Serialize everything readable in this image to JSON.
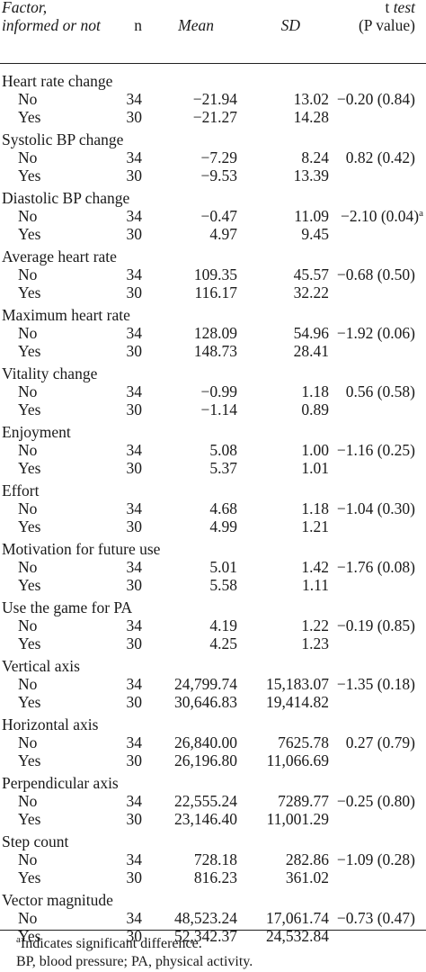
{
  "header": {
    "factor_line1": "Factor,",
    "factor_line2": "informed or not",
    "n": "n",
    "mean": "Mean",
    "sd": "SD",
    "t_prefix": "t",
    "t_suffix": "test",
    "p": "(P value)"
  },
  "rows": [
    {
      "factor": "Heart rate change",
      "no": {
        "label": "No",
        "n": "34",
        "mean": "−21.94",
        "sd": "13.02"
      },
      "yes": {
        "label": "Yes",
        "n": "30",
        "mean": "−21.27",
        "sd": "14.28"
      },
      "t": "−0.20 (0.84)",
      "sup": ""
    },
    {
      "factor": "Systolic BP change",
      "no": {
        "label": "No",
        "n": "34",
        "mean": "−7.29",
        "sd": "8.24"
      },
      "yes": {
        "label": "Yes",
        "n": "30",
        "mean": "−9.53",
        "sd": "13.39"
      },
      "t": "0.82 (0.42)",
      "sup": ""
    },
    {
      "factor": "Diastolic BP change",
      "no": {
        "label": "No",
        "n": "34",
        "mean": "−0.47",
        "sd": "11.09"
      },
      "yes": {
        "label": "Yes",
        "n": "30",
        "mean": "4.97",
        "sd": "9.45"
      },
      "t": "−2.10 (0.04)",
      "sup": "a"
    },
    {
      "factor": "Average heart rate",
      "no": {
        "label": "No",
        "n": "34",
        "mean": "109.35",
        "sd": "45.57"
      },
      "yes": {
        "label": "Yes",
        "n": "30",
        "mean": "116.17",
        "sd": "32.22"
      },
      "t": "−0.68 (0.50)",
      "sup": ""
    },
    {
      "factor": "Maximum heart rate",
      "no": {
        "label": "No",
        "n": "34",
        "mean": "128.09",
        "sd": "54.96"
      },
      "yes": {
        "label": "Yes",
        "n": "30",
        "mean": "148.73",
        "sd": "28.41"
      },
      "t": "−1.92 (0.06)",
      "sup": ""
    },
    {
      "factor": "Vitality change",
      "no": {
        "label": "No",
        "n": "34",
        "mean": "−0.99",
        "sd": "1.18"
      },
      "yes": {
        "label": "Yes",
        "n": "30",
        "mean": "−1.14",
        "sd": "0.89"
      },
      "t": "0.56 (0.58)",
      "sup": ""
    },
    {
      "factor": "Enjoyment",
      "no": {
        "label": "No",
        "n": "34",
        "mean": "5.08",
        "sd": "1.00"
      },
      "yes": {
        "label": "Yes",
        "n": "30",
        "mean": "5.37",
        "sd": "1.01"
      },
      "t": "−1.16 (0.25)",
      "sup": ""
    },
    {
      "factor": "Effort",
      "no": {
        "label": "No",
        "n": "34",
        "mean": "4.68",
        "sd": "1.18"
      },
      "yes": {
        "label": "Yes",
        "n": "30",
        "mean": "4.99",
        "sd": "1.21"
      },
      "t": "−1.04 (0.30)",
      "sup": ""
    },
    {
      "factor": "Motivation for future use",
      "no": {
        "label": "No",
        "n": "34",
        "mean": "5.01",
        "sd": "1.42"
      },
      "yes": {
        "label": "Yes",
        "n": "30",
        "mean": "5.58",
        "sd": "1.11"
      },
      "t": "−1.76 (0.08)",
      "sup": ""
    },
    {
      "factor": "Use the game for PA",
      "no": {
        "label": "No",
        "n": "34",
        "mean": "4.19",
        "sd": "1.22"
      },
      "yes": {
        "label": "Yes",
        "n": "30",
        "mean": "4.25",
        "sd": "1.23"
      },
      "t": "−0.19 (0.85)",
      "sup": ""
    },
    {
      "factor": "Vertical axis",
      "no": {
        "label": "No",
        "n": "34",
        "mean": "24,799.74",
        "sd": "15,183.07"
      },
      "yes": {
        "label": "Yes",
        "n": "30",
        "mean": "30,646.83",
        "sd": "19,414.82"
      },
      "t": "−1.35 (0.18)",
      "sup": ""
    },
    {
      "factor": "Horizontal axis",
      "no": {
        "label": "No",
        "n": "34",
        "mean": "26,840.00",
        "sd": "7625.78"
      },
      "yes": {
        "label": "Yes",
        "n": "30",
        "mean": "26,196.80",
        "sd": "11,066.69"
      },
      "t": "0.27 (0.79)",
      "sup": ""
    },
    {
      "factor": "Perpendicular axis",
      "no": {
        "label": "No",
        "n": "34",
        "mean": "22,555.24",
        "sd": "7289.77"
      },
      "yes": {
        "label": "Yes",
        "n": "30",
        "mean": "23,146.40",
        "sd": "11,001.29"
      },
      "t": "−0.25 (0.80)",
      "sup": ""
    },
    {
      "factor": "Step count",
      "no": {
        "label": "No",
        "n": "34",
        "mean": "728.18",
        "sd": "282.86"
      },
      "yes": {
        "label": "Yes",
        "n": "30",
        "mean": "816.23",
        "sd": "361.02"
      },
      "t": "−1.09 (0.28)",
      "sup": ""
    },
    {
      "factor": "Vector magnitude",
      "no": {
        "label": "No",
        "n": "34",
        "mean": "48,523.24",
        "sd": "17,061.74"
      },
      "yes": {
        "label": "Yes",
        "n": "30",
        "mean": "52,342.37",
        "sd": "24,532.84"
      },
      "t": "−0.73 (0.47)",
      "sup": ""
    }
  ],
  "footnotes": {
    "a_marker": "a",
    "a_text": "Indicates significant difference.",
    "abbrev": "BP, blood pressure; PA, physical activity."
  }
}
